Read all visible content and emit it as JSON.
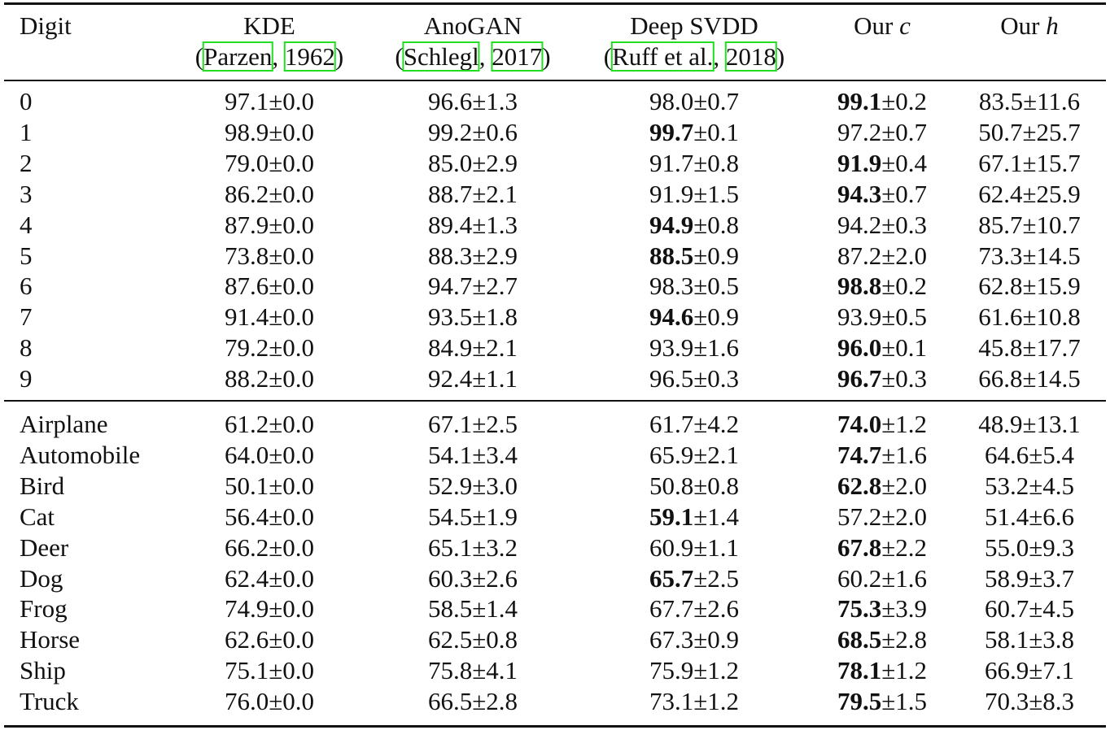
{
  "table": {
    "header": {
      "first": "Digit",
      "columns": [
        {
          "name": [
            "KDE"
          ],
          "cite": [
            "(",
            "Parzen",
            ", ",
            "1962",
            ")"
          ]
        },
        {
          "name": [
            "AnoGAN"
          ],
          "cite": [
            "(",
            "Schlegl",
            ", ",
            "2017",
            ")"
          ]
        },
        {
          "name": [
            "Deep SVDD"
          ],
          "cite": [
            "(",
            "Ruff et al.",
            ", ",
            "2018",
            ")"
          ]
        },
        {
          "name": [
            "Our ",
            "c"
          ]
        },
        {
          "name": [
            "Our ",
            "h"
          ]
        }
      ]
    },
    "groups": [
      {
        "rows": [
          {
            "label": "0",
            "best": 3,
            "cells": [
              [
                "97.1",
                "±0.0"
              ],
              [
                "96.6",
                "±1.3"
              ],
              [
                "98.0",
                "±0.7"
              ],
              [
                "99.1",
                "±0.2"
              ],
              [
                "83.5",
                "±11.6"
              ]
            ]
          },
          {
            "label": "1",
            "best": 2,
            "cells": [
              [
                "98.9",
                "±0.0"
              ],
              [
                "99.2",
                "±0.6"
              ],
              [
                "99.7",
                "±0.1"
              ],
              [
                "97.2",
                "±0.7"
              ],
              [
                "50.7",
                "±25.7"
              ]
            ]
          },
          {
            "label": "2",
            "best": 3,
            "cells": [
              [
                "79.0",
                "±0.0"
              ],
              [
                "85.0",
                "±2.9"
              ],
              [
                "91.7",
                "±0.8"
              ],
              [
                "91.9",
                "±0.4"
              ],
              [
                "67.1",
                "±15.7"
              ]
            ]
          },
          {
            "label": "3",
            "best": 3,
            "cells": [
              [
                "86.2",
                "±0.0"
              ],
              [
                "88.7",
                "±2.1"
              ],
              [
                "91.9",
                "±1.5"
              ],
              [
                "94.3",
                "±0.7"
              ],
              [
                "62.4",
                "±25.9"
              ]
            ]
          },
          {
            "label": "4",
            "best": 2,
            "cells": [
              [
                "87.9",
                "±0.0"
              ],
              [
                "89.4",
                "±1.3"
              ],
              [
                "94.9",
                "±0.8"
              ],
              [
                "94.2",
                "±0.3"
              ],
              [
                "85.7",
                "±10.7"
              ]
            ]
          },
          {
            "label": "5",
            "best": 2,
            "cells": [
              [
                "73.8",
                "±0.0"
              ],
              [
                "88.3",
                "±2.9"
              ],
              [
                "88.5",
                "±0.9"
              ],
              [
                "87.2",
                "±2.0"
              ],
              [
                "73.3",
                "±14.5"
              ]
            ]
          },
          {
            "label": "6",
            "best": 3,
            "cells": [
              [
                "87.6",
                "±0.0"
              ],
              [
                "94.7",
                "±2.7"
              ],
              [
                "98.3",
                "±0.5"
              ],
              [
                "98.8",
                "±0.2"
              ],
              [
                "62.8",
                "±15.9"
              ]
            ]
          },
          {
            "label": "7",
            "best": 2,
            "cells": [
              [
                "91.4",
                "±0.0"
              ],
              [
                "93.5",
                "±1.8"
              ],
              [
                "94.6",
                "±0.9"
              ],
              [
                "93.9",
                "±0.5"
              ],
              [
                "61.6",
                "±10.8"
              ]
            ]
          },
          {
            "label": "8",
            "best": 3,
            "cells": [
              [
                "79.2",
                "±0.0"
              ],
              [
                "84.9",
                "±2.1"
              ],
              [
                "93.9",
                "±1.6"
              ],
              [
                "96.0",
                "±0.1"
              ],
              [
                "45.8",
                "±17.7"
              ]
            ]
          },
          {
            "label": "9",
            "best": 3,
            "cells": [
              [
                "88.2",
                "±0.0"
              ],
              [
                "92.4",
                "±1.1"
              ],
              [
                "96.5",
                "±0.3"
              ],
              [
                "96.7",
                "±0.3"
              ],
              [
                "66.8",
                "±14.5"
              ]
            ]
          }
        ]
      },
      {
        "rows": [
          {
            "label": "Airplane",
            "best": 3,
            "cells": [
              [
                "61.2",
                "±0.0"
              ],
              [
                "67.1",
                "±2.5"
              ],
              [
                "61.7",
                "±4.2"
              ],
              [
                "74.0",
                "±1.2"
              ],
              [
                "48.9",
                "±13.1"
              ]
            ]
          },
          {
            "label": "Automobile",
            "best": 3,
            "cells": [
              [
                "64.0",
                "±0.0"
              ],
              [
                "54.1",
                "±3.4"
              ],
              [
                "65.9",
                "±2.1"
              ],
              [
                "74.7",
                "±1.6"
              ],
              [
                "64.6",
                "±5.4"
              ]
            ]
          },
          {
            "label": "Bird",
            "best": 3,
            "cells": [
              [
                "50.1",
                "±0.0"
              ],
              [
                "52.9",
                "±3.0"
              ],
              [
                "50.8",
                "±0.8"
              ],
              [
                "62.8",
                "±2.0"
              ],
              [
                "53.2",
                "±4.5"
              ]
            ]
          },
          {
            "label": "Cat",
            "best": 2,
            "cells": [
              [
                "56.4",
                "±0.0"
              ],
              [
                "54.5",
                "±1.9"
              ],
              [
                "59.1",
                "±1.4"
              ],
              [
                "57.2",
                "±2.0"
              ],
              [
                "51.4",
                "±6.6"
              ]
            ]
          },
          {
            "label": "Deer",
            "best": 3,
            "cells": [
              [
                "66.2",
                "±0.0"
              ],
              [
                "65.1",
                "±3.2"
              ],
              [
                "60.9",
                "±1.1"
              ],
              [
                "67.8",
                "±2.2"
              ],
              [
                "55.0",
                "±9.3"
              ]
            ]
          },
          {
            "label": "Dog",
            "best": 2,
            "cells": [
              [
                "62.4",
                "±0.0"
              ],
              [
                "60.3",
                "±2.6"
              ],
              [
                "65.7",
                "±2.5"
              ],
              [
                "60.2",
                "±1.6"
              ],
              [
                "58.9",
                "±3.7"
              ]
            ]
          },
          {
            "label": "Frog",
            "best": 3,
            "cells": [
              [
                "74.9",
                "±0.0"
              ],
              [
                "58.5",
                "±1.4"
              ],
              [
                "67.7",
                "±2.6"
              ],
              [
                "75.3",
                "±3.9"
              ],
              [
                "60.7",
                "±4.5"
              ]
            ]
          },
          {
            "label": "Horse",
            "best": 3,
            "cells": [
              [
                "62.6",
                "±0.0"
              ],
              [
                "62.5",
                "±0.8"
              ],
              [
                "67.3",
                "±0.9"
              ],
              [
                "68.5",
                "±2.8"
              ],
              [
                "58.1",
                "±3.8"
              ]
            ]
          },
          {
            "label": "Ship",
            "best": 3,
            "cells": [
              [
                "75.1",
                "±0.0"
              ],
              [
                "75.8",
                "±4.1"
              ],
              [
                "75.9",
                "±1.2"
              ],
              [
                "78.1",
                "±1.2"
              ],
              [
                "66.9",
                "±7.1"
              ]
            ]
          },
          {
            "label": "Truck",
            "best": 3,
            "cells": [
              [
                "76.0",
                "±0.0"
              ],
              [
                "66.5",
                "±2.8"
              ],
              [
                "73.1",
                "±1.2"
              ],
              [
                "79.5",
                "±1.5"
              ],
              [
                "70.3",
                "±8.3"
              ]
            ]
          }
        ]
      }
    ]
  }
}
